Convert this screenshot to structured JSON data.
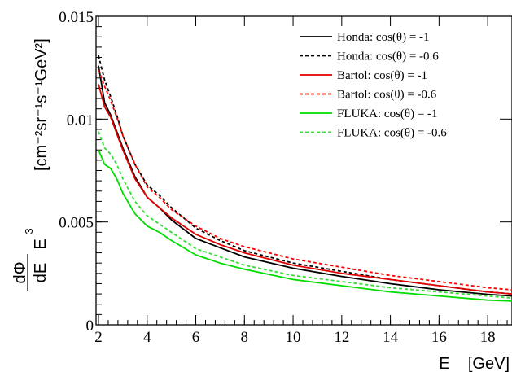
{
  "chart_data": {
    "type": "line",
    "xlabel": "E    [GeV]",
    "ylabel": {
      "lhs_num": "dΦ",
      "lhs_den": "dE",
      "lhs_pow": "E",
      "lhs_pow_exp": "3",
      "units": "[cm⁻²sr⁻¹s⁻¹GeV²]"
    },
    "xlim": [
      1.9,
      19
    ],
    "ylim": [
      0,
      0.015
    ],
    "xticks": [
      "2",
      "4",
      "6",
      "8",
      "10",
      "12",
      "14",
      "16",
      "18"
    ],
    "xtick_values": [
      2,
      4,
      6,
      8,
      10,
      12,
      14,
      16,
      18
    ],
    "yticks": [
      "0",
      "0.005",
      "0.01",
      "0.015"
    ],
    "ytick_values": [
      0,
      0.005,
      0.01,
      0.015
    ],
    "grid": false,
    "legend_position": "top-right",
    "x": [
      2.0,
      2.25,
      2.5,
      2.75,
      3.0,
      3.5,
      4.0,
      4.5,
      5.0,
      6.0,
      7.0,
      8.0,
      10.0,
      12.0,
      14.0,
      16.0,
      18.0,
      19.0
    ],
    "series": [
      {
        "name": "Honda:  cos(θ) = -1",
        "color": "#000000",
        "dash": "solid",
        "values": [
          0.0126,
          0.0108,
          0.0102,
          0.0094,
          0.0086,
          0.0072,
          0.0062,
          0.0057,
          0.0051,
          0.0042,
          0.00375,
          0.0033,
          0.00275,
          0.00235,
          0.002,
          0.0017,
          0.00148,
          0.0014
        ]
      },
      {
        "name": "Honda:  cos(θ) = -0.6",
        "color": "#000000",
        "dash": "dashed",
        "values": [
          0.0131,
          0.0119,
          0.0111,
          0.0102,
          0.0092,
          0.0078,
          0.0068,
          0.0063,
          0.0057,
          0.0047,
          0.0041,
          0.0036,
          0.003,
          0.0026,
          0.0022,
          0.0019,
          0.0016,
          0.0015
        ]
      },
      {
        "name": "Bartol: cos(θ) = -1",
        "color": "#e00000",
        "dash": "solid",
        "values": [
          0.0117,
          0.0106,
          0.0101,
          0.0093,
          0.0085,
          0.0071,
          0.0062,
          0.0057,
          0.0052,
          0.0044,
          0.0039,
          0.0035,
          0.0029,
          0.0025,
          0.0022,
          0.0019,
          0.0016,
          0.0015
        ]
      },
      {
        "name": "Bartol: cos(θ) = -0.6",
        "color": "#ff0000",
        "dash": "dashed",
        "values": [
          0.0124,
          0.0116,
          0.0109,
          0.0101,
          0.0092,
          0.0078,
          0.0067,
          0.0062,
          0.0056,
          0.0048,
          0.0042,
          0.0038,
          0.0032,
          0.0028,
          0.0024,
          0.0021,
          0.0018,
          0.0017
        ]
      },
      {
        "name": "FLUKA:  cos(θ) = -1",
        "color": "#00dd00",
        "dash": "solid",
        "values": [
          0.0085,
          0.0078,
          0.0076,
          0.0071,
          0.0064,
          0.0054,
          0.0048,
          0.0045,
          0.0041,
          0.0034,
          0.003,
          0.0027,
          0.0022,
          0.0019,
          0.0016,
          0.0014,
          0.0012,
          0.00115
        ]
      },
      {
        "name": "FLUKA:  cos(θ) = -0.6",
        "color": "#33dd33",
        "dash": "dashed",
        "values": [
          0.0094,
          0.0086,
          0.0083,
          0.0078,
          0.0071,
          0.006,
          0.0053,
          0.0049,
          0.0045,
          0.0037,
          0.0033,
          0.0029,
          0.0024,
          0.0021,
          0.0018,
          0.0016,
          0.0014,
          0.0013
        ]
      }
    ]
  }
}
